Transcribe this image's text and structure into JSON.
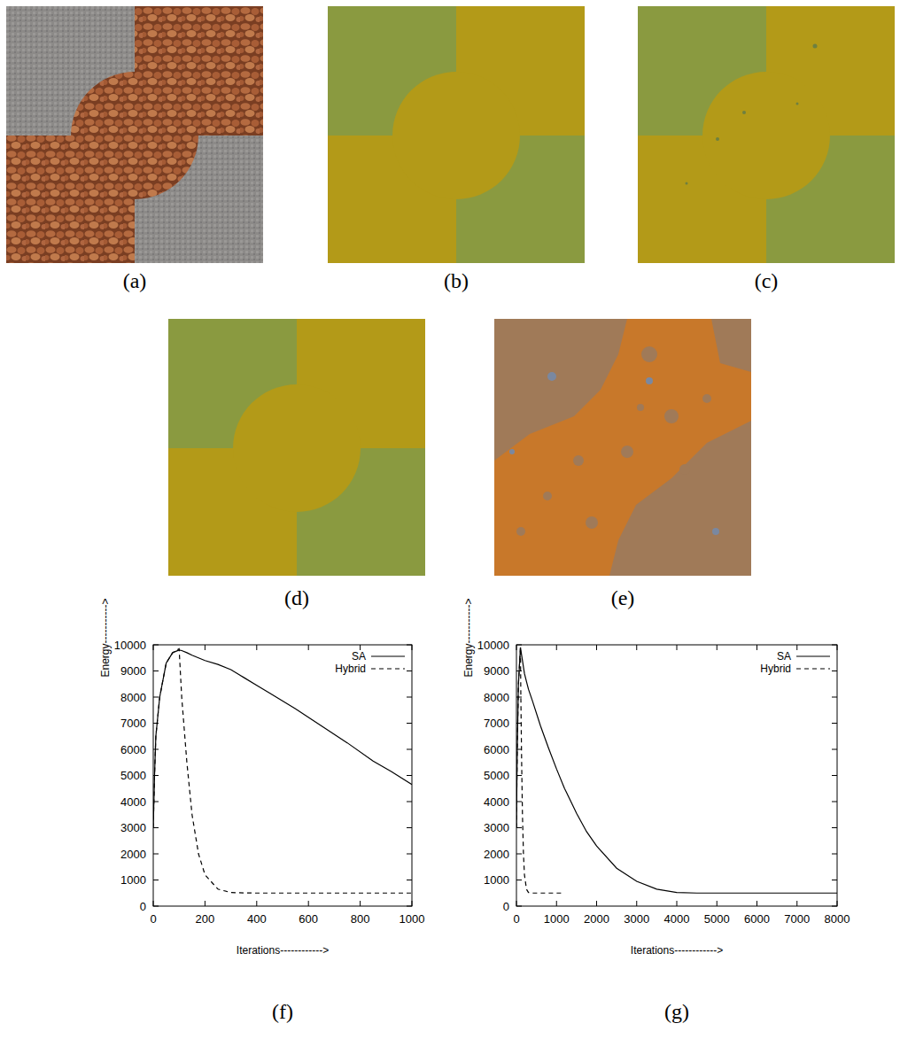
{
  "panels": [
    {
      "label": "(a)"
    },
    {
      "label": "(b)"
    },
    {
      "label": "(c)"
    },
    {
      "label": "(d)"
    },
    {
      "label": "(e)"
    }
  ],
  "chart_data": [
    {
      "type": "line",
      "title": "(f)",
      "x_label": "Iterations------------>",
      "y_label": "Energy----------->",
      "x": [
        0,
        5,
        10,
        25,
        50,
        75,
        100,
        110,
        130,
        150,
        175,
        200,
        250,
        300,
        350,
        400,
        450,
        550,
        650,
        750,
        850,
        920,
        1000
      ],
      "xlim": [
        0,
        1000
      ],
      "ylim": [
        0,
        10000
      ],
      "xticks": [
        0,
        200,
        400,
        600,
        800,
        1000
      ],
      "yticks": [
        0,
        1000,
        2000,
        3000,
        4000,
        5000,
        6000,
        7000,
        8000,
        9000,
        10000
      ],
      "legend": "top-right",
      "series": [
        {
          "name": "SA",
          "color": "#000000",
          "line_style": "solid",
          "values": [
            3000,
            5000,
            6500,
            8000,
            9300,
            9700,
            9800,
            9780,
            9700,
            9600,
            9500,
            9400,
            9250,
            9050,
            8750,
            8450,
            8150,
            7550,
            6900,
            6250,
            5550,
            5150,
            4650
          ]
        },
        {
          "name": "Hybrid",
          "color": "#000000",
          "line_style": "dashed",
          "values": [
            3000,
            5000,
            6500,
            8000,
            9300,
            9700,
            9850,
            8000,
            5500,
            3500,
            2000,
            1200,
            650,
            520,
            505,
            500,
            500,
            500,
            500,
            500,
            500,
            500,
            500
          ]
        }
      ]
    },
    {
      "type": "line",
      "title": "(g)",
      "x_label": "Iterations------------>",
      "y_label": "Energy----------->",
      "x": [
        0,
        20,
        50,
        100,
        110,
        130,
        150,
        175,
        200,
        250,
        300,
        400,
        600,
        800,
        1000,
        1200,
        1250,
        1500,
        1750,
        2000,
        2500,
        3000,
        3500,
        4000,
        4500,
        8000
      ],
      "xlim": [
        0,
        8000
      ],
      "ylim": [
        0,
        10000
      ],
      "xticks": [
        0,
        1000,
        2000,
        3000,
        4000,
        5000,
        6000,
        7000,
        8000
      ],
      "yticks": [
        0,
        1000,
        2000,
        3000,
        4000,
        5000,
        6000,
        7000,
        8000,
        9000,
        10000
      ],
      "legend": "top-right",
      "series": [
        {
          "name": "SA",
          "color": "#000000",
          "line_style": "solid",
          "values": [
            3000,
            6000,
            8500,
            9900,
            9800,
            9600,
            9400,
            9150,
            8900,
            8600,
            8300,
            7850,
            6900,
            6050,
            5250,
            4500,
            4350,
            3550,
            2850,
            2300,
            1450,
            950,
            650,
            520,
            500,
            500
          ]
        },
        {
          "name": "Hybrid",
          "color": "#000000",
          "line_style": "dashed",
          "values": [
            3000,
            6000,
            8500,
            9900,
            8000,
            5500,
            3500,
            2000,
            1200,
            650,
            520,
            500,
            500,
            500,
            500,
            500,
            null,
            null,
            null,
            null,
            null,
            null,
            null,
            null,
            null,
            null
          ]
        }
      ]
    }
  ]
}
